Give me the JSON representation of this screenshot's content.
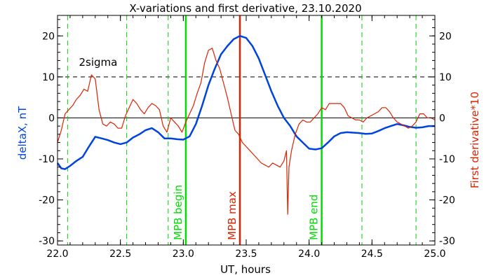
{
  "chart_data": {
    "type": "line",
    "title": "X-variations and first derivative, 23.10.2020",
    "xlabel": "UT, hours",
    "ylabel_left": "deltaX, nT",
    "ylabel_right": "First derivative*10",
    "xlim": [
      22.0,
      25.0
    ],
    "ylim": [
      -31,
      25
    ],
    "x_ticks": [
      22.0,
      22.5,
      23.0,
      23.5,
      24.0,
      24.5,
      25.0
    ],
    "x_tick_labels": [
      "22.0",
      "22.5",
      "23.0",
      "23.5",
      "24.0",
      "24.5",
      "25.0"
    ],
    "y_ticks": [
      -30,
      -20,
      -10,
      0,
      10,
      20
    ],
    "y_tick_labels": [
      "-30",
      "-20",
      "-10",
      "0",
      "10",
      "20"
    ],
    "annotation_2sigma": "2sigma",
    "sigma_level": 10,
    "dashed_vlines": [
      22.08,
      22.55,
      22.88,
      24.42,
      24.85
    ],
    "markers": [
      {
        "x": 23.02,
        "label": "MPB begin",
        "color": "#00dd00"
      },
      {
        "x": 23.45,
        "label": "MPB max",
        "color": "#dd2200"
      },
      {
        "x": 24.1,
        "label": "MPB end",
        "color": "#00dd00"
      }
    ],
    "series": [
      {
        "name": "deltaX, nT",
        "color": "#0044dd",
        "x": [
          22.0,
          22.03,
          22.06,
          22.1,
          22.15,
          22.2,
          22.25,
          22.3,
          22.35,
          22.4,
          22.45,
          22.5,
          22.55,
          22.6,
          22.65,
          22.7,
          22.75,
          22.8,
          22.85,
          22.9,
          22.95,
          23.0,
          23.05,
          23.1,
          23.15,
          23.2,
          23.25,
          23.3,
          23.35,
          23.4,
          23.45,
          23.5,
          23.55,
          23.6,
          23.65,
          23.7,
          23.75,
          23.8,
          23.85,
          23.9,
          23.95,
          24.0,
          24.05,
          24.1,
          24.15,
          24.2,
          24.25,
          24.3,
          24.35,
          24.4,
          24.45,
          24.5,
          24.55,
          24.6,
          24.65,
          24.7,
          24.75,
          24.8,
          24.85,
          24.9,
          24.95,
          25.0
        ],
        "values": [
          -11,
          -12.3,
          -12.5,
          -11.7,
          -10.5,
          -9.5,
          -7,
          -4.6,
          -5,
          -5.4,
          -6,
          -6.4,
          -6,
          -4.8,
          -4,
          -3,
          -2.5,
          -3.5,
          -5,
          -5,
          -5.2,
          -5.3,
          -4.5,
          -1.5,
          3,
          8,
          12,
          15.5,
          17.5,
          19.2,
          20,
          19.5,
          17.5,
          14.5,
          10.5,
          6.5,
          3,
          0,
          -2,
          -4.5,
          -6,
          -7.5,
          -7.7,
          -7.4,
          -6,
          -4.5,
          -3.7,
          -3.5,
          -3.6,
          -3.7,
          -3.9,
          -3.8,
          -3.2,
          -2.5,
          -2,
          -1.5,
          -1.8,
          -2.2,
          -2.4,
          -2.3,
          -2,
          -2
        ]
      },
      {
        "name": "First derivative*10",
        "color": "#dd2200",
        "x": [
          22.0,
          22.03,
          22.06,
          22.09,
          22.12,
          22.15,
          22.18,
          22.21,
          22.24,
          22.27,
          22.3,
          22.33,
          22.36,
          22.39,
          22.42,
          22.45,
          22.48,
          22.51,
          22.54,
          22.57,
          22.6,
          22.63,
          22.66,
          22.69,
          22.72,
          22.75,
          22.78,
          22.81,
          22.84,
          22.87,
          22.9,
          22.93,
          22.96,
          22.99,
          23.02,
          23.05,
          23.08,
          23.11,
          23.14,
          23.17,
          23.2,
          23.23,
          23.26,
          23.29,
          23.32,
          23.35,
          23.38,
          23.41,
          23.44,
          23.47,
          23.5,
          23.53,
          23.56,
          23.59,
          23.62,
          23.65,
          23.68,
          23.71,
          23.74,
          23.77,
          23.8,
          23.82,
          23.83,
          23.84,
          23.86,
          23.89,
          23.92,
          23.95,
          23.98,
          24.01,
          24.04,
          24.07,
          24.1,
          24.13,
          24.16,
          24.19,
          24.22,
          24.25,
          24.28,
          24.31,
          24.34,
          24.37,
          24.4,
          24.43,
          24.46,
          24.49,
          24.52,
          24.55,
          24.58,
          24.61,
          24.64,
          24.67,
          24.7,
          24.73,
          24.76,
          24.79,
          24.82,
          24.85,
          24.88,
          24.91,
          24.94,
          24.97,
          25.0
        ],
        "values": [
          -6,
          -3,
          1,
          2,
          3,
          4.5,
          5.5,
          7,
          6.5,
          10.5,
          9.5,
          2,
          -1.5,
          -2,
          -1,
          -1.5,
          -2.5,
          -2.5,
          0.5,
          2.5,
          4.5,
          3.5,
          2,
          1,
          2.5,
          3.5,
          3,
          2,
          -2,
          -3.5,
          0,
          -1,
          -2,
          -3.5,
          -1,
          1,
          3,
          6,
          8.5,
          13.5,
          16.5,
          17,
          14,
          12,
          8.5,
          5,
          1,
          -3,
          -4,
          -6,
          -7,
          -8,
          -9,
          -10,
          -11,
          -11.5,
          -12,
          -11,
          -11.5,
          -12,
          -10.5,
          -8,
          -23.5,
          -12,
          -8,
          -4,
          -1.5,
          -0.5,
          -1,
          -1,
          0,
          1,
          2.5,
          2,
          3.5,
          3.5,
          3.5,
          3.5,
          2.5,
          0.5,
          0,
          -0.5,
          -0.5,
          -1,
          0,
          0.5,
          1,
          1.5,
          2.5,
          2.5,
          1.5,
          0,
          -1,
          -1.5,
          -2,
          -2.5,
          -2,
          -1,
          1,
          1,
          0,
          0,
          -0.5
        ]
      }
    ]
  }
}
